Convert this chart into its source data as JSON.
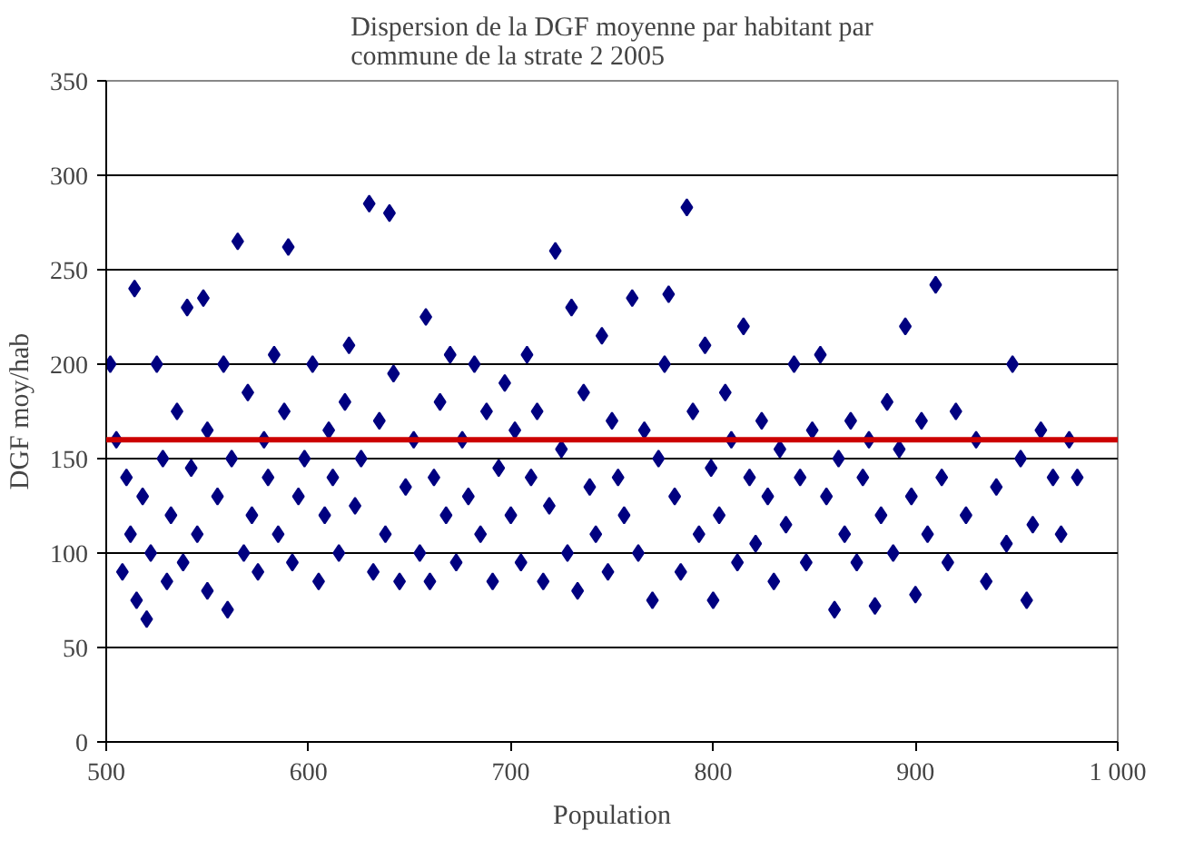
{
  "chart_data": {
    "type": "scatter",
    "title": "Dispersion de la DGF moyenne par habitant par\ncommune de la strate 2  2005",
    "xlabel": "Population",
    "ylabel": "DGF moy/hab",
    "xlim": [
      500,
      1000
    ],
    "xticks": [
      500,
      600,
      700,
      800,
      900,
      {
        "value": 1000,
        "label": "1 000"
      }
    ],
    "ylim": [
      0,
      350
    ],
    "yticks": [
      0,
      50,
      100,
      150,
      200,
      250,
      300,
      350
    ],
    "grid": "y",
    "marker": "diamond",
    "ref_lines": [
      {
        "axis": "y",
        "value": 160,
        "color": "#cc0000"
      }
    ],
    "series": [
      {
        "color": "#000080",
        "x": [
          502,
          505,
          508,
          510,
          512,
          514,
          515,
          518,
          520,
          522,
          525,
          528,
          530,
          532,
          535,
          538,
          540,
          542,
          545,
          548,
          550,
          550,
          555,
          558,
          560,
          562,
          565,
          568,
          570,
          572,
          575,
          578,
          580,
          583,
          585,
          588,
          590,
          592,
          595,
          598,
          602,
          605,
          608,
          610,
          612,
          615,
          618,
          620,
          623,
          626,
          630,
          632,
          635,
          638,
          640,
          642,
          645,
          648,
          652,
          655,
          658,
          660,
          662,
          665,
          668,
          670,
          673,
          676,
          679,
          682,
          685,
          688,
          691,
          694,
          697,
          700,
          702,
          705,
          708,
          710,
          713,
          716,
          719,
          722,
          725,
          728,
          730,
          733,
          736,
          739,
          742,
          745,
          748,
          750,
          753,
          756,
          760,
          763,
          766,
          770,
          773,
          776,
          778,
          781,
          784,
          787,
          790,
          793,
          796,
          799,
          800,
          803,
          806,
          809,
          812,
          815,
          818,
          821,
          824,
          827,
          830,
          833,
          836,
          840,
          843,
          846,
          849,
          853,
          856,
          860,
          862,
          865,
          868,
          871,
          874,
          877,
          880,
          883,
          886,
          889,
          892,
          895,
          898,
          900,
          903,
          906,
          910,
          913,
          916,
          920,
          925,
          930,
          935,
          940,
          945,
          948,
          952,
          955,
          958,
          962,
          968,
          972,
          976,
          980
        ],
        "values": [
          200,
          160,
          90,
          140,
          110,
          240,
          75,
          130,
          65,
          100,
          200,
          150,
          85,
          120,
          175,
          95,
          230,
          145,
          110,
          235,
          80,
          165,
          130,
          200,
          70,
          150,
          265,
          100,
          185,
          120,
          90,
          160,
          140,
          205,
          110,
          175,
          262,
          95,
          130,
          150,
          200,
          85,
          120,
          165,
          140,
          100,
          180,
          210,
          125,
          150,
          285,
          90,
          170,
          110,
          280,
          195,
          85,
          135,
          160,
          100,
          225,
          85,
          140,
          180,
          120,
          205,
          95,
          160,
          130,
          200,
          110,
          175,
          85,
          145,
          190,
          120,
          165,
          95,
          205,
          140,
          175,
          85,
          125,
          260,
          155,
          100,
          230,
          80,
          185,
          135,
          110,
          215,
          90,
          170,
          140,
          120,
          235,
          100,
          165,
          75,
          150,
          200,
          237,
          130,
          90,
          283,
          175,
          110,
          210,
          145,
          75,
          120,
          185,
          160,
          95,
          220,
          140,
          105,
          170,
          130,
          85,
          155,
          115,
          200,
          140,
          95,
          165,
          205,
          130,
          70,
          150,
          110,
          170,
          95,
          140,
          160,
          72,
          120,
          180,
          100,
          155,
          220,
          130,
          78,
          170,
          110,
          242,
          140,
          95,
          175,
          120,
          160,
          85,
          135,
          105,
          200,
          150,
          75,
          115,
          165,
          140,
          110,
          160,
          140
        ]
      }
    ]
  }
}
